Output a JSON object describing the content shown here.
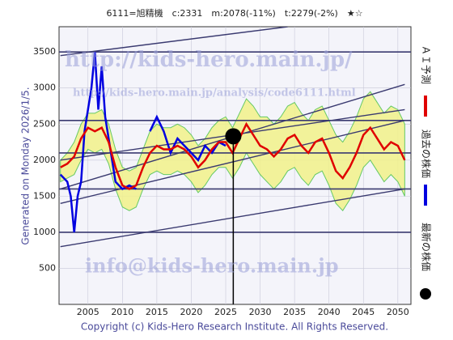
{
  "chart_data": {
    "type": "line",
    "title": "6111=旭精機　c:2331　m:2078(-11%)　t:2279(-2%)　★☆",
    "side_label": "Generated on Monday 2026/1/5.",
    "footer": "Copyright (c) Kids-Hero Research Institute. All Rights Reserved.",
    "watermarks": [
      "http://kids-hero.main.jp/",
      "http://kids-hero.main.jp/analysis/code6111.html",
      "info@kids-hero.main.jp"
    ],
    "xlim": [
      2000.8,
      2051.9
    ],
    "ylim": [
      0,
      3850
    ],
    "xticks": [
      2005,
      2010,
      2015,
      2020,
      2025,
      2030,
      2035,
      2040,
      2045,
      2050
    ],
    "yticks": [
      500,
      1000,
      1500,
      2000,
      2500,
      3000,
      3500
    ],
    "grid": true,
    "series": [
      {
        "name": "ＡＩ予測",
        "color": "#e00000",
        "x": [
          2001,
          2002,
          2003,
          2004,
          2005,
          2006,
          2007,
          2008,
          2009,
          2010,
          2011,
          2012,
          2013,
          2014,
          2015,
          2016,
          2017,
          2018,
          2019,
          2020,
          2021,
          2022,
          2023,
          2024,
          2025,
          2026,
          2027,
          2028,
          2029,
          2030,
          2031,
          2032,
          2033,
          2034,
          2035,
          2036,
          2037,
          2038,
          2039,
          2040,
          2041,
          2042,
          2043,
          2044,
          2045,
          2046,
          2047,
          2048,
          2049,
          2050,
          2051
        ],
        "values": [
          1900,
          1950,
          2050,
          2300,
          2450,
          2400,
          2450,
          2250,
          1900,
          1650,
          1600,
          1650,
          1900,
          2100,
          2200,
          2150,
          2150,
          2200,
          2150,
          2050,
          1900,
          2000,
          2150,
          2250,
          2250,
          2100,
          2300,
          2500,
          2350,
          2200,
          2150,
          2050,
          2150,
          2300,
          2350,
          2200,
          2100,
          2250,
          2300,
          2100,
          1850,
          1750,
          1900,
          2100,
          2350,
          2450,
          2300,
          2150,
          2250,
          2200,
          2000
        ]
      },
      {
        "name": "過去の株価",
        "color": "#0000e0",
        "x": [
          2001,
          2002,
          2002.5,
          2003,
          2003.5,
          2004,
          2004.5,
          2005,
          2005.5,
          2006,
          2006.5,
          2007,
          2007.5,
          2008,
          2008.5,
          2009,
          2010,
          2011,
          2012,
          2013,
          2014,
          2015,
          2016,
          2017,
          2018,
          2019,
          2020,
          2021,
          2022,
          2023,
          2024,
          2025
        ],
        "values": [
          1800,
          1700,
          1500,
          1000,
          1500,
          1700,
          2400,
          2700,
          3000,
          3500,
          2700,
          3300,
          2600,
          2300,
          2000,
          1700,
          1600,
          1650,
          1600,
          null,
          2400,
          2600,
          2400,
          2100,
          2300,
          2200,
          2100,
          2000,
          2200,
          2100,
          2250,
          2200
        ]
      }
    ],
    "band_upper": [
      2000,
      2100,
      2250,
      2500,
      2650,
      2650,
      2700,
      2500,
      2150,
      1900,
      1850,
      1900,
      2150,
      2400,
      2500,
      2450,
      2450,
      2500,
      2450,
      2350,
      2200,
      2300,
      2450,
      2550,
      2600,
      2450,
      2650,
      2850,
      2750,
      2600,
      2600,
      2500,
      2600,
      2750,
      2800,
      2650,
      2550,
      2700,
      2750,
      2550,
      2350,
      2250,
      2400,
      2600,
      2850,
      2950,
      2800,
      2650,
      2750,
      2700,
      2500
    ],
    "band_lower": [
      1700,
      1750,
      1800,
      2000,
      2150,
      2100,
      2150,
      1950,
      1600,
      1350,
      1300,
      1350,
      1600,
      1800,
      1850,
      1800,
      1800,
      1850,
      1800,
      1700,
      1550,
      1650,
      1800,
      1900,
      1900,
      1750,
      1900,
      2100,
      1950,
      1800,
      1700,
      1600,
      1700,
      1850,
      1900,
      1750,
      1650,
      1800,
      1850,
      1650,
      1400,
      1300,
      1450,
      1650,
      1900,
      2000,
      1850,
      1700,
      1800,
      1700,
      1500
    ],
    "latest": {
      "name": "最新の株価",
      "x": 2026.1,
      "value": 2331,
      "color": "#000000"
    },
    "hlines": [
      1000,
      1600,
      2100,
      2550,
      3500
    ],
    "trend_lines": [
      {
        "x": [
          2001,
          2051
        ],
        "y": [
          800,
          1600
        ]
      },
      {
        "x": [
          2001,
          2051
        ],
        "y": [
          1400,
          2550
        ]
      },
      {
        "x": [
          2001,
          2051
        ],
        "y": [
          2000,
          2700
        ]
      },
      {
        "x": [
          2001,
          2051
        ],
        "y": [
          1600,
          3050
        ]
      },
      {
        "x": [
          2001,
          2034
        ],
        "y": [
          3450,
          3850
        ]
      }
    ]
  }
}
